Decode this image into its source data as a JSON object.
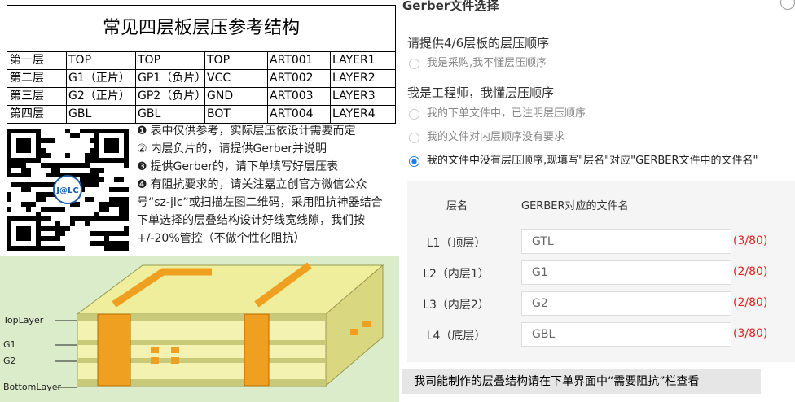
{
  "left": {
    "table": {
      "title": "常见四层板层压参考结构",
      "rows": [
        [
          "第一层",
          "TOP",
          "TOP",
          "TOP",
          "ART001",
          "LAYER1"
        ],
        [
          "第二层",
          "G1（正片）",
          "GP1（负片）",
          "VCC",
          "ART002",
          "LAYER2"
        ],
        [
          "第三层",
          "G2（正片）",
          "GP2（负片）",
          "GND",
          "ART003",
          "LAYER3"
        ],
        [
          "第四层",
          "GBL",
          "GBL",
          "BOT",
          "ART004",
          "LAYER4"
        ]
      ]
    },
    "notes": [
      {
        "marker": "❶",
        "text": "表中仅供参考，实际层压依设计需要而定"
      },
      {
        "marker": "②",
        "text": "内层负片的，请提供Gerber并说明"
      },
      {
        "marker": "❸",
        "text": "提供Gerber的，请下单填写好层压表"
      },
      {
        "marker": "❹",
        "text": "有阻抗要求的，请关注嘉立创官方微信公众号“sz-jlc”或扫描左图二维码，采用阻抗神器结合下单选择的层叠结构设计好线宽线隙，我们按+/-20%管控（不做个性化阻抗）"
      }
    ],
    "qr_logo": "J@LC",
    "diagram_labels": [
      "TopLayer",
      "G1",
      "G2",
      "BottomLayer"
    ]
  },
  "right": {
    "title": "Gerber文件选择",
    "question": "请提供4/6层板的层压顺序",
    "buyer_option": "我是采购,我不懂层压顺序",
    "engineer_heading": "我是工程师，我懂层压顺序",
    "engineer_options": [
      "我的下单文件中，已注明层压顺序",
      "我的文件对内层顺序没有要求",
      "我的文件中没有层压顺序,现填写\"层名\"对应\"GERBER文件中的文件名\""
    ],
    "selected_option": 2,
    "layer_header": [
      "层名",
      "GERBER对应的文件名"
    ],
    "layers": [
      {
        "name": "L1（顶层）",
        "file": "GTL",
        "count": "(3/80)"
      },
      {
        "name": "L2（内层1）",
        "file": "G1",
        "count": "(2/80)"
      },
      {
        "name": "L3（内层2）",
        "file": "G2",
        "count": "(2/80)"
      },
      {
        "name": "L4（底层）",
        "file": "GBL",
        "count": "(3/80)"
      }
    ],
    "footer": "我司能制作的层叠结构请在下单界面中“需要阻抗”栏查看"
  }
}
